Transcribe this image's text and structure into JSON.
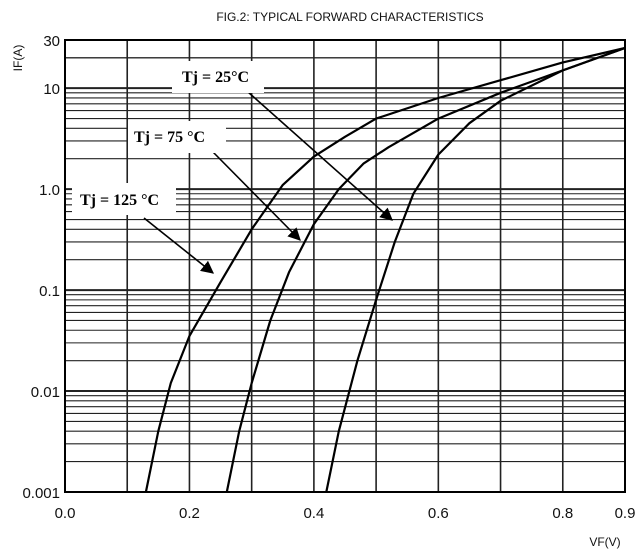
{
  "chart_data": {
    "type": "line",
    "title": "FIG.2: TYPICAL FORWARD CHARACTERISTICS",
    "xlabel": "VF(V)",
    "ylabel": "IF(A)",
    "xscale": "linear",
    "yscale": "log",
    "xlim": [
      0.0,
      0.9
    ],
    "ylim": [
      0.001,
      30
    ],
    "grid": true,
    "x_ticks": [
      "0.0",
      "0.2",
      "0.4",
      "0.6",
      "0.8",
      "0.9"
    ],
    "y_ticks": [
      "0.001",
      "0.01",
      "0.1",
      "1.0",
      "10",
      "30"
    ],
    "series": [
      {
        "name": "Tj = 125°C",
        "color": "#000000",
        "x": [
          0.13,
          0.15,
          0.17,
          0.2,
          0.25,
          0.3,
          0.35,
          0.4,
          0.45,
          0.5,
          0.6,
          0.7,
          0.8,
          0.9
        ],
        "y": [
          0.001,
          0.004,
          0.012,
          0.035,
          0.12,
          0.4,
          1.1,
          2.1,
          3.3,
          5.0,
          8.0,
          12.0,
          18.0,
          25.0
        ]
      },
      {
        "name": "Tj = 75°C",
        "color": "#000000",
        "x": [
          0.26,
          0.28,
          0.3,
          0.33,
          0.36,
          0.4,
          0.44,
          0.48,
          0.52,
          0.6,
          0.7,
          0.8,
          0.9
        ],
        "y": [
          0.001,
          0.004,
          0.012,
          0.05,
          0.15,
          0.45,
          1.0,
          1.8,
          2.6,
          5.0,
          9.0,
          15.0,
          25.0
        ]
      },
      {
        "name": "Tj = 25°C",
        "color": "#000000",
        "x": [
          0.42,
          0.44,
          0.47,
          0.5,
          0.53,
          0.56,
          0.6,
          0.65,
          0.7,
          0.8,
          0.9
        ],
        "y": [
          0.001,
          0.004,
          0.02,
          0.08,
          0.3,
          0.9,
          2.2,
          4.5,
          7.5,
          15.0,
          25.0
        ]
      }
    ],
    "annotations": [
      {
        "text": "Tj = 25°C"
      },
      {
        "text": "Tj = 75 °C"
      },
      {
        "text": "Tj = 125 °C"
      }
    ]
  }
}
